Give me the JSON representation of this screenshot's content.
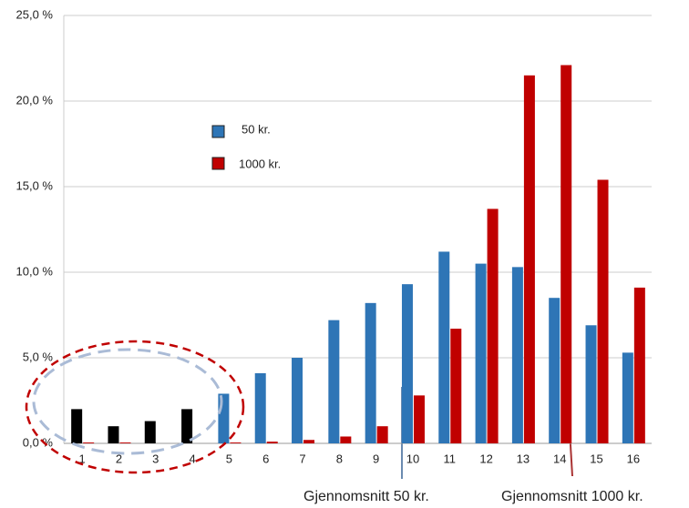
{
  "chart_data": {
    "type": "bar",
    "categories": [
      "1",
      "2",
      "3",
      "4",
      "5",
      "6",
      "7",
      "8",
      "9",
      "10",
      "11",
      "12",
      "13",
      "14",
      "15",
      "16"
    ],
    "series": [
      {
        "name": "50 kr.",
        "color": "#2e75b6",
        "colors": [
          "#000000",
          "#000000",
          "#000000",
          "#000000",
          "#2e75b6",
          "#2e75b6",
          "#2e75b6",
          "#2e75b6",
          "#2e75b6",
          "#2e75b6",
          "#2e75b6",
          "#2e75b6",
          "#2e75b6",
          "#2e75b6",
          "#2e75b6",
          "#2e75b6"
        ],
        "values": [
          2.0,
          1.0,
          1.3,
          2.0,
          2.9,
          4.1,
          5.0,
          7.2,
          8.2,
          9.3,
          11.2,
          10.5,
          10.3,
          8.5,
          6.9,
          5.3
        ]
      },
      {
        "name": "1000 kr.",
        "color": "#c00000",
        "values": [
          0.05,
          0.05,
          0,
          0,
          0.05,
          0.1,
          0.2,
          0.4,
          1.0,
          2.8,
          6.7,
          13.7,
          21.5,
          22.1,
          15.4,
          9.1
        ]
      }
    ],
    "ylim": [
      0,
      25
    ],
    "yticks": [
      {
        "value": 0,
        "label": "0,0 %"
      },
      {
        "value": 5,
        "label": "5,0 %"
      },
      {
        "value": 10,
        "label": "10,0 %"
      },
      {
        "value": 15,
        "label": "15,0 %"
      },
      {
        "value": 20,
        "label": "20,0 %"
      },
      {
        "value": 25,
        "label": "25,0 %"
      }
    ],
    "grid": true,
    "annotations": [
      "Gjennomsnitt  50 kr.",
      "Gjennomsnitt 1000 kr."
    ]
  }
}
